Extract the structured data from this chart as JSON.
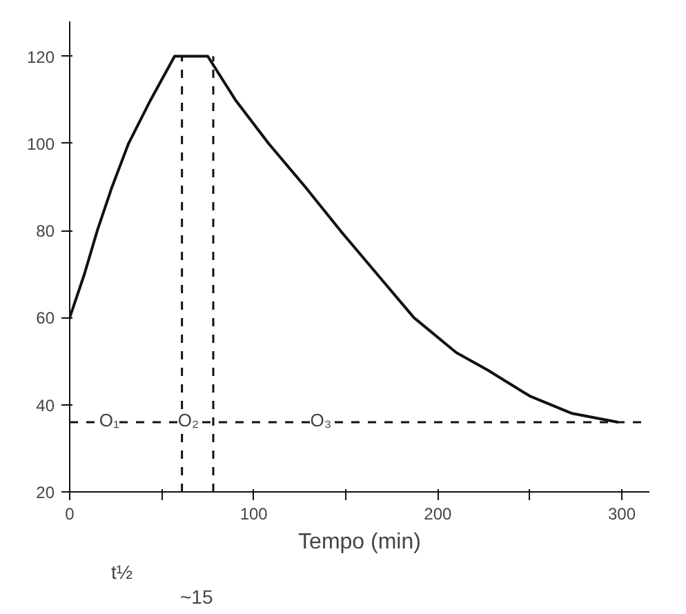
{
  "chart_data": {
    "type": "line",
    "xlabel": "Tempo (min)",
    "x": [
      0,
      8,
      15,
      23,
      32,
      44,
      57,
      75,
      90,
      108,
      128,
      147,
      167,
      187,
      210,
      227,
      250,
      273,
      298
    ],
    "series": [
      {
        "color": "#111111",
        "values": [
          60,
          70,
          80,
          90,
          100,
          110,
          120,
          120,
          110,
          100,
          90,
          80,
          70,
          60,
          52,
          48,
          42,
          38,
          36
        ]
      }
    ],
    "xlim": [
      0,
      315
    ],
    "ylim": [
      20,
      128
    ],
    "xticks": [
      0,
      {
        "value": 50,
        "label": null
      },
      100,
      {
        "value": 150,
        "label": null
      },
      200,
      {
        "value": 250,
        "label": null
      },
      300
    ],
    "yticks": [
      20,
      40,
      60,
      80,
      100,
      120
    ],
    "grid": false,
    "marker": "none",
    "line_style": "solid",
    "ref_lines": [
      {
        "axis": "y",
        "value": 36,
        "line_style": "dashed",
        "color": "#111111"
      },
      {
        "axis": "x",
        "value": 61,
        "line_style": "dashed",
        "color": "#111111"
      },
      {
        "axis": "x",
        "value": 78,
        "line_style": "dashed",
        "color": "#111111"
      }
    ],
    "annotations": [
      {
        "text": "O₁",
        "x": 23,
        "y": 36
      },
      {
        "text": "O₂",
        "x": 66,
        "y": 36
      },
      {
        "text": "O₃",
        "x": 138,
        "y": 36
      },
      "t½",
      "~15"
    ]
  }
}
